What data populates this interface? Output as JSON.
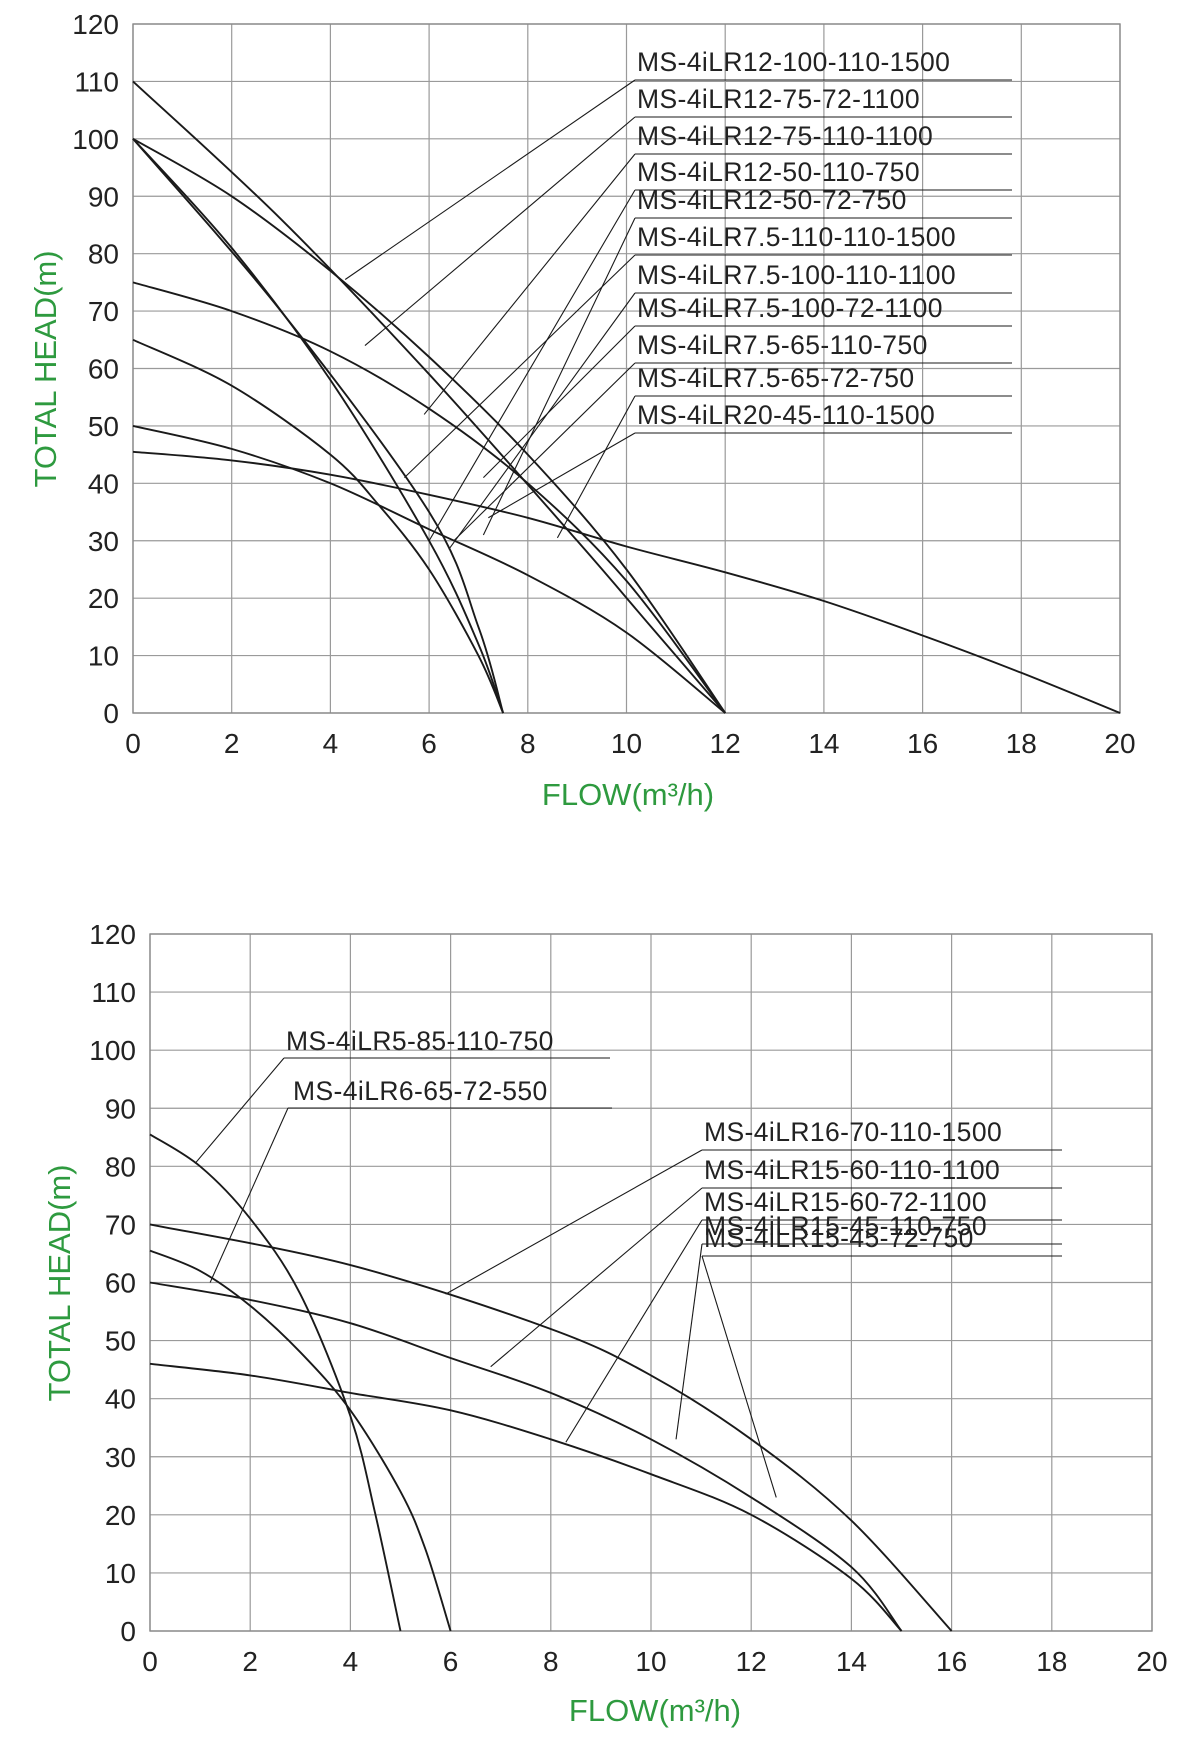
{
  "chart_data": [
    {
      "type": "line",
      "xlabel": "FLOW(m³/h)",
      "ylabel": "TOTAL HEAD(m)",
      "xlim": [
        0,
        20
      ],
      "ylim": [
        0,
        120
      ],
      "x_ticks": [
        "0",
        "2",
        "4",
        "6",
        "8",
        "10",
        "12",
        "14",
        "16",
        "18",
        "20"
      ],
      "y_ticks": [
        "0",
        "10",
        "20",
        "30",
        "40",
        "50",
        "60",
        "70",
        "80",
        "90",
        "100",
        "110",
        "120"
      ],
      "grid": true,
      "series": [
        {
          "name": "MS-4iLR12-100-110-1500",
          "x": [
            0,
            3,
            6,
            9,
            10.5,
            12
          ],
          "y": [
            110,
            86,
            59,
            30,
            15,
            0
          ]
        },
        {
          "name": "MS-4iLR12-75-72-1100",
          "x": [
            0,
            3,
            6,
            7,
            7.5
          ],
          "y": [
            100,
            70,
            35,
            15,
            0
          ]
        },
        {
          "name": "MS-4iLR12-75-110-1100",
          "x": [
            0,
            2,
            4,
            6,
            7,
            7.5
          ],
          "y": [
            100,
            81,
            58,
            30,
            12,
            0
          ]
        },
        {
          "name": "MS-4iLR12-50-110-750",
          "x": [
            0,
            2,
            4,
            6,
            8,
            10,
            12
          ],
          "y": [
            100,
            90,
            77,
            62,
            45,
            25,
            0
          ]
        },
        {
          "name": "MS-4iLR12-50-72-750",
          "x": [
            0,
            2,
            4,
            6,
            8,
            10,
            12
          ],
          "y": [
            75,
            70,
            63,
            53,
            40,
            23,
            0
          ]
        },
        {
          "name": "MS-4iLR7.5-110-110-1500",
          "x": [
            0,
            2,
            4,
            5,
            6,
            7,
            7.5
          ],
          "y": [
            65,
            57,
            45,
            36,
            25,
            10,
            0
          ]
        },
        {
          "name": "MS-4iLR7.5-100-110-1100",
          "x": [
            0,
            2,
            4,
            6,
            8,
            10,
            12
          ],
          "y": [
            50,
            46,
            40,
            32,
            24,
            14,
            0
          ]
        },
        {
          "name": "MS-4iLR7.5-100-72-1100",
          "x": [
            0,
            2,
            4,
            6,
            8,
            10,
            12,
            14,
            16,
            18,
            20
          ],
          "y": [
            45.5,
            44,
            41.5,
            38,
            34,
            29,
            24.5,
            19.5,
            13.5,
            7,
            0
          ]
        },
        {
          "name": "MS-4iLR7.5-65-110-750",
          "x": [],
          "y": []
        },
        {
          "name": "MS-4iLR7.5-65-72-750",
          "x": [],
          "y": []
        },
        {
          "name": "MS-4iLR20-45-110-1500",
          "x": [],
          "y": []
        }
      ]
    },
    {
      "type": "line",
      "xlabel": "FLOW(m³/h)",
      "ylabel": "TOTAL HEAD(m)",
      "xlim": [
        0,
        20
      ],
      "ylim": [
        0,
        120
      ],
      "x_ticks": [
        "0",
        "2",
        "4",
        "6",
        "8",
        "10",
        "12",
        "14",
        "16",
        "18",
        "20"
      ],
      "y_ticks": [
        "0",
        "10",
        "20",
        "30",
        "40",
        "50",
        "60",
        "70",
        "80",
        "90",
        "100",
        "110",
        "120"
      ],
      "grid": true,
      "series": [
        {
          "name": "MS-4iLR5-85-110-750",
          "x": [
            0,
            1,
            2,
            3,
            4,
            4.5,
            5
          ],
          "y": [
            85.5,
            80,
            71,
            58,
            37,
            20,
            0
          ]
        },
        {
          "name": "MS-4iLR6-65-72-550",
          "x": [
            0,
            1,
            2,
            3,
            4,
            5,
            5.5,
            6
          ],
          "y": [
            65.5,
            62,
            56,
            48,
            38,
            24,
            14,
            0
          ]
        },
        {
          "name": "MS-4iLR16-70-110-1500",
          "x": [
            0,
            4,
            8,
            10,
            12,
            14,
            16
          ],
          "y": [
            70,
            63,
            52,
            44,
            33,
            19,
            0
          ]
        },
        {
          "name": "MS-4iLR15-60-110-1100",
          "x": [
            0,
            2,
            4,
            6,
            8,
            10,
            12,
            14,
            15
          ],
          "y": [
            60,
            57,
            53,
            47,
            41,
            33,
            23,
            11,
            0
          ]
        },
        {
          "name": "MS-4iLR15-60-72-1100",
          "x": [
            0,
            2,
            4,
            6,
            8,
            10,
            12,
            14,
            15
          ],
          "y": [
            46,
            44,
            41,
            38,
            33,
            27,
            20,
            9,
            0
          ]
        },
        {
          "name": "MS-4iLR15-45-110-750",
          "x": [],
          "y": []
        },
        {
          "name": "MS-4iLR15-45-72-750",
          "x": [],
          "y": []
        }
      ]
    }
  ]
}
